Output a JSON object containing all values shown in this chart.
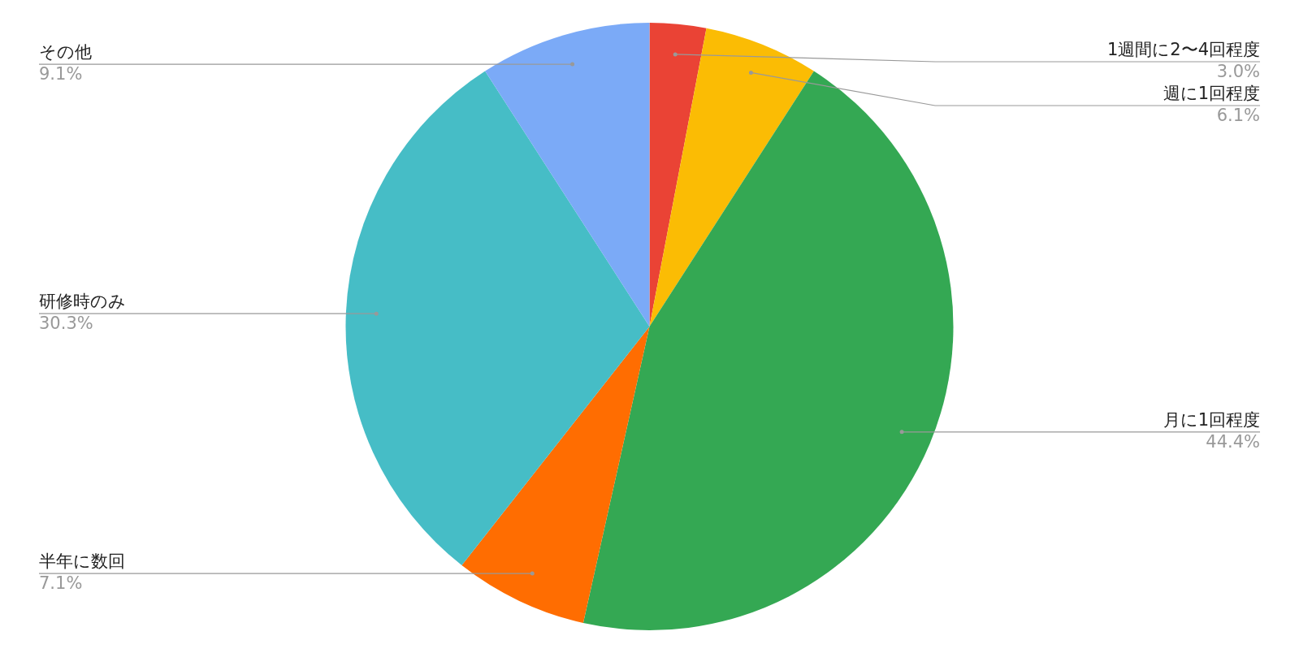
{
  "chart_data": {
    "type": "pie",
    "categories": [
      "1週間に2〜4回程度",
      "週に1回程度",
      "月に1回程度",
      "半年に数回",
      "研修時のみ",
      "その他"
    ],
    "values": [
      3.0,
      6.1,
      44.4,
      7.1,
      30.3,
      9.1
    ],
    "colors": [
      "#ea4335",
      "#fbbc04",
      "#34a853",
      "#ff6d01",
      "#46bdc6",
      "#7baaf7"
    ],
    "value_labels": [
      "3.0%",
      "6.1%",
      "44.4%",
      "7.1%",
      "30.3%",
      "9.1%"
    ],
    "legend": false
  }
}
